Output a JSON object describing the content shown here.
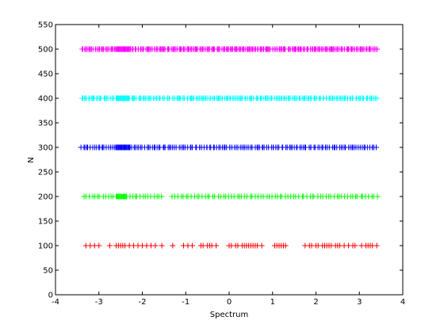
{
  "chart_data": {
    "type": "scatter",
    "title": "",
    "xlabel": "Spectrum",
    "ylabel": "N",
    "xlim": [
      -4,
      4
    ],
    "ylim": [
      0,
      550
    ],
    "x_ticks": [
      -4,
      -3,
      -2,
      -1,
      0,
      1,
      2,
      3,
      4
    ],
    "y_ticks": [
      0,
      50,
      100,
      150,
      200,
      250,
      300,
      350,
      400,
      450,
      500,
      550
    ],
    "grid": false,
    "marker": "+",
    "series": [
      {
        "color": "#ff0000",
        "y": 100,
        "x": [
          -3.3,
          -3.2,
          -3.1,
          -3.0,
          -2.75,
          -2.6,
          -2.55,
          -2.5,
          -2.45,
          -2.4,
          -2.3,
          -2.2,
          -2.1,
          -2.0,
          -1.9,
          -1.8,
          -1.7,
          -1.55,
          -1.3,
          -1.05,
          -0.95,
          -0.85,
          -0.65,
          -0.6,
          -0.5,
          -0.45,
          -0.4,
          -0.3,
          0.0,
          0.05,
          0.15,
          0.2,
          0.3,
          0.35,
          0.4,
          0.45,
          0.5,
          0.55,
          0.6,
          0.65,
          0.75,
          1.05,
          1.1,
          1.15,
          1.2,
          1.25,
          1.3,
          1.75,
          1.85,
          1.9,
          2.0,
          2.05,
          2.15,
          2.2,
          2.25,
          2.3,
          2.35,
          2.45,
          2.5,
          2.55,
          2.65,
          2.75,
          2.85,
          2.9,
          3.05,
          3.15,
          3.2,
          3.25,
          3.3,
          3.4
        ]
      },
      {
        "color": "#00ff00",
        "y": 200,
        "range": [
          -3.35,
          3.4
        ],
        "gaps": [
          [
            -1.5,
            -1.35
          ]
        ],
        "dense": [
          [
            -2.6,
            -2.35
          ]
        ]
      },
      {
        "color": "#0000ff",
        "y": 300,
        "range": [
          -3.4,
          3.4
        ],
        "gaps": [],
        "dense": [
          [
            -2.6,
            -2.3
          ]
        ]
      },
      {
        "color": "#00ffff",
        "y": 400,
        "range": [
          -3.4,
          3.4
        ],
        "gaps": [],
        "dense": [
          [
            -2.6,
            -2.3
          ]
        ]
      },
      {
        "color": "#ff00ff",
        "y": 500,
        "range": [
          -3.4,
          3.4
        ],
        "gaps": [],
        "dense": [
          [
            -2.6,
            -2.3
          ]
        ]
      }
    ]
  }
}
